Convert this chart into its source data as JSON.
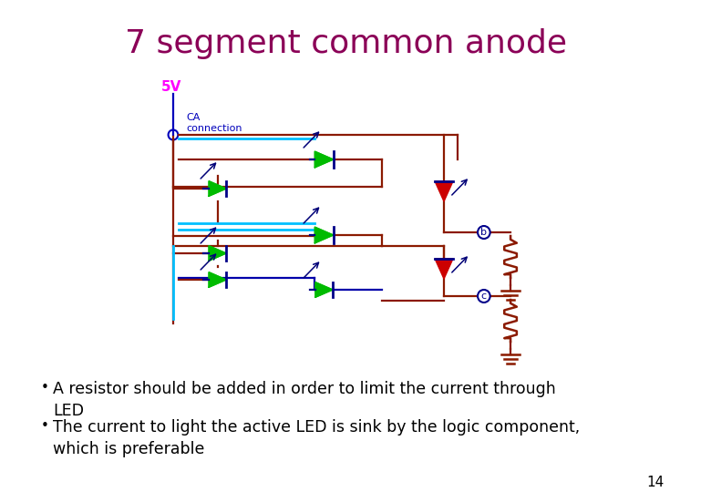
{
  "title": "7 segment common anode",
  "title_color": "#8B0057",
  "title_fontsize": 26,
  "title_font": "Comic Sans MS",
  "bg_color": "#ffffff",
  "bullet_font": "Comic Sans MS",
  "bullet_fontsize": 12.5,
  "bullets": [
    "A resistor should be added in order to limit the current through\nLED",
    "The current to light the active LED is sink by the logic component,\nwhich is preferable"
  ],
  "page_number": "14",
  "fiveV_color": "#FF00FF",
  "label_color": "#0000BB",
  "wire_dark": "#8B1A00",
  "wire_cyan": "#00BFFF",
  "wire_blue": "#0000AA",
  "green_color": "#00BB00",
  "red_color": "#CC0000",
  "node_color": "#00008B",
  "arrow_color": "#000077"
}
